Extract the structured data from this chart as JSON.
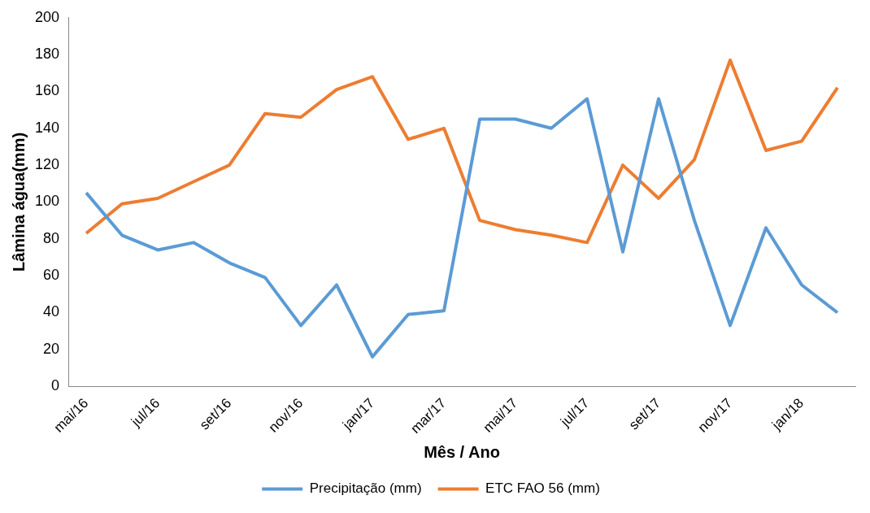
{
  "chart_data": {
    "type": "line",
    "xlabel": "Mês / Ano",
    "ylabel": "Lâmina água(mm)",
    "categories": [
      "mai/16",
      null,
      "jul/16",
      null,
      "set/16",
      null,
      "nov/16",
      null,
      "jan/17",
      null,
      "mar/17",
      null,
      "mai/17",
      null,
      "jul/17",
      null,
      "set/17",
      null,
      "nov/17",
      null,
      "jan/18",
      null
    ],
    "series": [
      {
        "name": "Precipitação (mm)",
        "color": "#5b9bd5",
        "values": [
          105,
          82,
          74,
          78,
          67,
          59,
          33,
          55,
          16,
          39,
          41,
          145,
          145,
          140,
          156,
          73,
          156,
          90,
          33,
          86,
          55,
          40
        ]
      },
      {
        "name": "ETC FAO 56 (mm)",
        "color": "#ed7d31",
        "values": [
          83,
          99,
          102,
          111,
          120,
          148,
          146,
          161,
          168,
          134,
          140,
          90,
          85,
          82,
          78,
          120,
          102,
          123,
          177,
          128,
          133,
          162
        ]
      }
    ],
    "ylim": [
      0,
      200
    ],
    "yticks": [
      0,
      20,
      40,
      60,
      80,
      100,
      120,
      140,
      160,
      180,
      200
    ],
    "grid": false,
    "legend": "bottom",
    "marker": "none",
    "line_style": "solid"
  }
}
